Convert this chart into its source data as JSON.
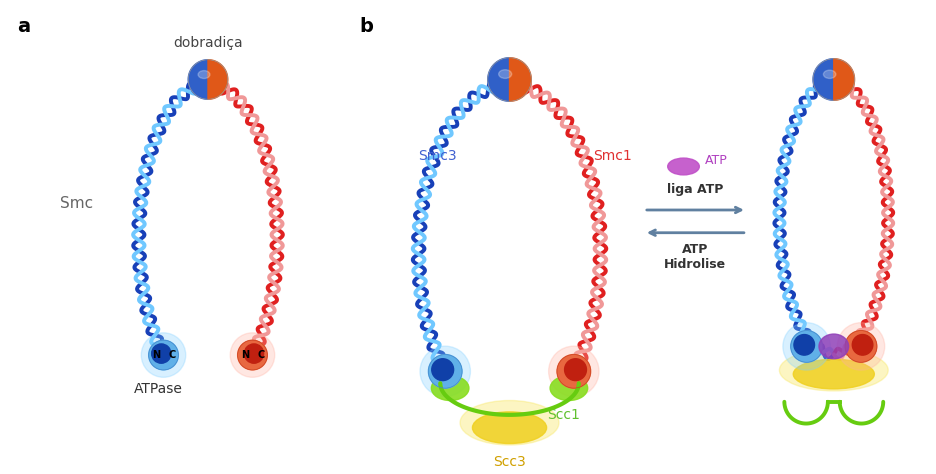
{
  "fig_width": 9.36,
  "fig_height": 4.74,
  "dpi": 100,
  "bg_color": "#ffffff",
  "label_a": "a",
  "label_b": "b",
  "text_dobradica": "dobradiça",
  "text_smc": "Smc",
  "text_atpase": "ATPase",
  "text_smc3": "Smc3",
  "text_smc1": "Smc1",
  "text_scc1": "Scc1",
  "text_scc3": "Scc3",
  "text_atp": "ATP",
  "text_liga_atp": "liga ATP",
  "text_atp_hidrolise": "ATP\nHidrolise",
  "color_smc3_text": "#4060d0",
  "color_smc1_text": "#e03030",
  "color_scc1_text": "#60c030",
  "color_scc3_text": "#d0a000",
  "color_atp_text": "#b040c0"
}
